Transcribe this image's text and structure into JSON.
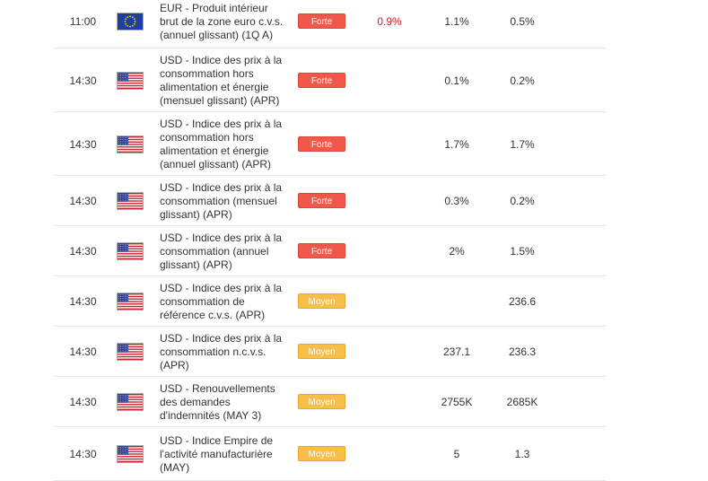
{
  "rows": [
    {
      "time": "11:00",
      "flag": "eu-flag-icon",
      "event": [
        "EUR - Produit intérieur",
        "brut de la zone euro c.v.s.",
        "(annuel glissant) (1Q A)"
      ],
      "importance": "Forte",
      "level": "forte",
      "actual": "0.9%",
      "forecast": "1.1%",
      "previous": "0.5%"
    },
    {
      "time": "14:30",
      "flag": "us-flag-icon",
      "event": [
        "USD - Indice des prix à la",
        "consommation hors",
        "alimentation et énergie",
        "(mensuel glissant) (APR)"
      ],
      "importance": "Forte",
      "level": "forte",
      "actual": "",
      "forecast": "0.1%",
      "previous": "0.2%"
    },
    {
      "time": "14:30",
      "flag": "us-flag-icon",
      "event": [
        "USD - Indice des prix à la",
        "consommation hors",
        "alimentation et énergie",
        "(annuel glissant) (APR)"
      ],
      "importance": "Forte",
      "level": "forte",
      "actual": "",
      "forecast": "1.7%",
      "previous": "1.7%"
    },
    {
      "time": "14:30",
      "flag": "us-flag-icon",
      "event": [
        "USD - Indice des prix à la",
        "consommation (mensuel",
        "glissant) (APR)"
      ],
      "importance": "Forte",
      "level": "forte",
      "actual": "",
      "forecast": "0.3%",
      "previous": "0.2%"
    },
    {
      "time": "14:30",
      "flag": "us-flag-icon",
      "event": [
        "USD - Indice des prix à la",
        "consommation (annuel",
        "glissant) (APR)"
      ],
      "importance": "Forte",
      "level": "forte",
      "actual": "",
      "forecast": "2%",
      "previous": "1.5%"
    },
    {
      "time": "14:30",
      "flag": "us-flag-icon",
      "event": [
        "USD - Indice des prix à la",
        "consommation de",
        "référence c.v.s. (APR)"
      ],
      "importance": "Moyen",
      "level": "moyen",
      "actual": "",
      "forecast": "",
      "previous": "236.6"
    },
    {
      "time": "14:30",
      "flag": "us-flag-icon",
      "event": [
        "USD - Indice des prix à la",
        "consommation n.c.v.s.",
        "(APR)"
      ],
      "importance": "Moyen",
      "level": "moyen",
      "actual": "",
      "forecast": "237.1",
      "previous": "236.3"
    },
    {
      "time": "14:30",
      "flag": "us-flag-icon",
      "event": [
        "USD - Renouvellements",
        "des demandes",
        "d'indemnités (MAY 3)"
      ],
      "importance": "Moyen",
      "level": "moyen",
      "actual": "",
      "forecast": "2755K",
      "previous": "2685K"
    },
    {
      "time": "14:30",
      "flag": "us-flag-icon",
      "event": [
        "USD - Indice Empire de",
        "l'activité manufacturière",
        "(MAY)"
      ],
      "importance": "Moyen",
      "level": "moyen",
      "actual": "",
      "forecast": "5",
      "previous": "1.3"
    }
  ]
}
